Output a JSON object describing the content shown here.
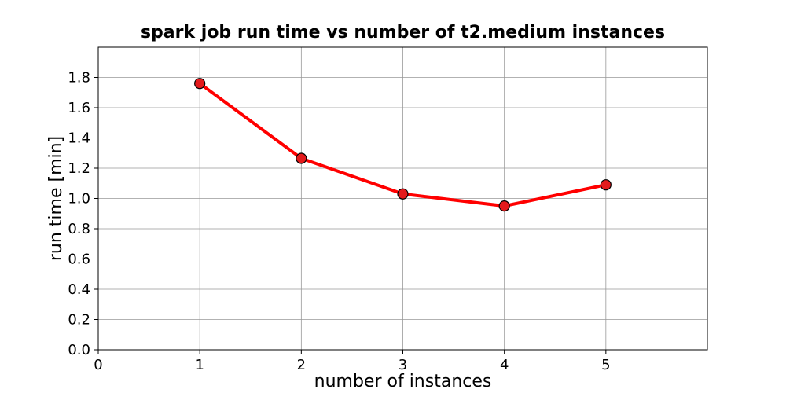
{
  "chart_data": {
    "type": "line",
    "title": "spark job run time vs number of t2.medium instances",
    "xlabel": "number of instances",
    "ylabel": "run time [min]",
    "x": [
      1,
      2,
      3,
      4,
      5
    ],
    "series": [
      {
        "values": [
          1.76,
          1.265,
          1.03,
          0.95,
          1.09
        ],
        "color": "#ff0000",
        "marker_face": "#e41a1c",
        "marker_edge": "#000000"
      }
    ],
    "xlim": [
      0,
      6
    ],
    "ylim": [
      0,
      2
    ],
    "xticks": [
      0,
      1,
      2,
      3,
      4,
      5
    ],
    "yticks": [
      0.0,
      0.2,
      0.4,
      0.6,
      0.8,
      1.0,
      1.2,
      1.4,
      1.6,
      1.8
    ],
    "xtick_labels": [
      "0",
      "1",
      "2",
      "3",
      "4",
      "5"
    ],
    "ytick_labels": [
      "0.0",
      "0.2",
      "0.4",
      "0.6",
      "0.8",
      "1.0",
      "1.2",
      "1.4",
      "1.6",
      "1.8"
    ],
    "grid": true,
    "grid_color": "#999999"
  }
}
